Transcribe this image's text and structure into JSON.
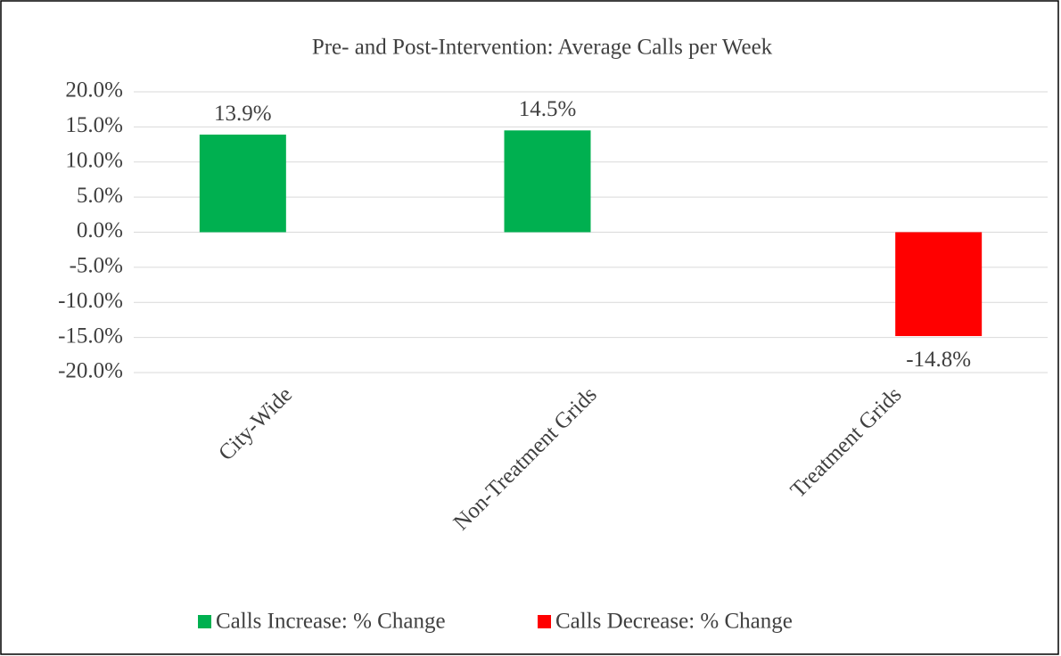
{
  "chart_data": {
    "type": "bar",
    "title": "Pre- and Post-Intervention: Average Calls per Week",
    "categories": [
      "City-Wide",
      "Non-Treatment Grids",
      "Treatment Grids"
    ],
    "series": [
      {
        "name": "Calls Increase: % Change",
        "color": "#00b050",
        "values": [
          13.9,
          14.5,
          null
        ],
        "value_labels": [
          "13.9%",
          "14.5%",
          null
        ]
      },
      {
        "name": "Calls Decrease: % Change",
        "color": "#ff0000",
        "values": [
          null,
          null,
          -14.8
        ],
        "value_labels": [
          null,
          null,
          "-14.8%"
        ]
      }
    ],
    "ylim": [
      -20,
      20
    ],
    "yticks": [
      {
        "value": -20,
        "label": "-20.0%"
      },
      {
        "value": -15,
        "label": "-15.0%"
      },
      {
        "value": -10,
        "label": "-10.0%"
      },
      {
        "value": -5,
        "label": "-5.0%"
      },
      {
        "value": 0,
        "label": "0.0%"
      },
      {
        "value": 5,
        "label": "5.0%"
      },
      {
        "value": 10,
        "label": "10.0%"
      },
      {
        "value": 15,
        "label": "15.0%"
      },
      {
        "value": 20,
        "label": "20.0%"
      }
    ],
    "grid": true,
    "legend": "bottom"
  }
}
